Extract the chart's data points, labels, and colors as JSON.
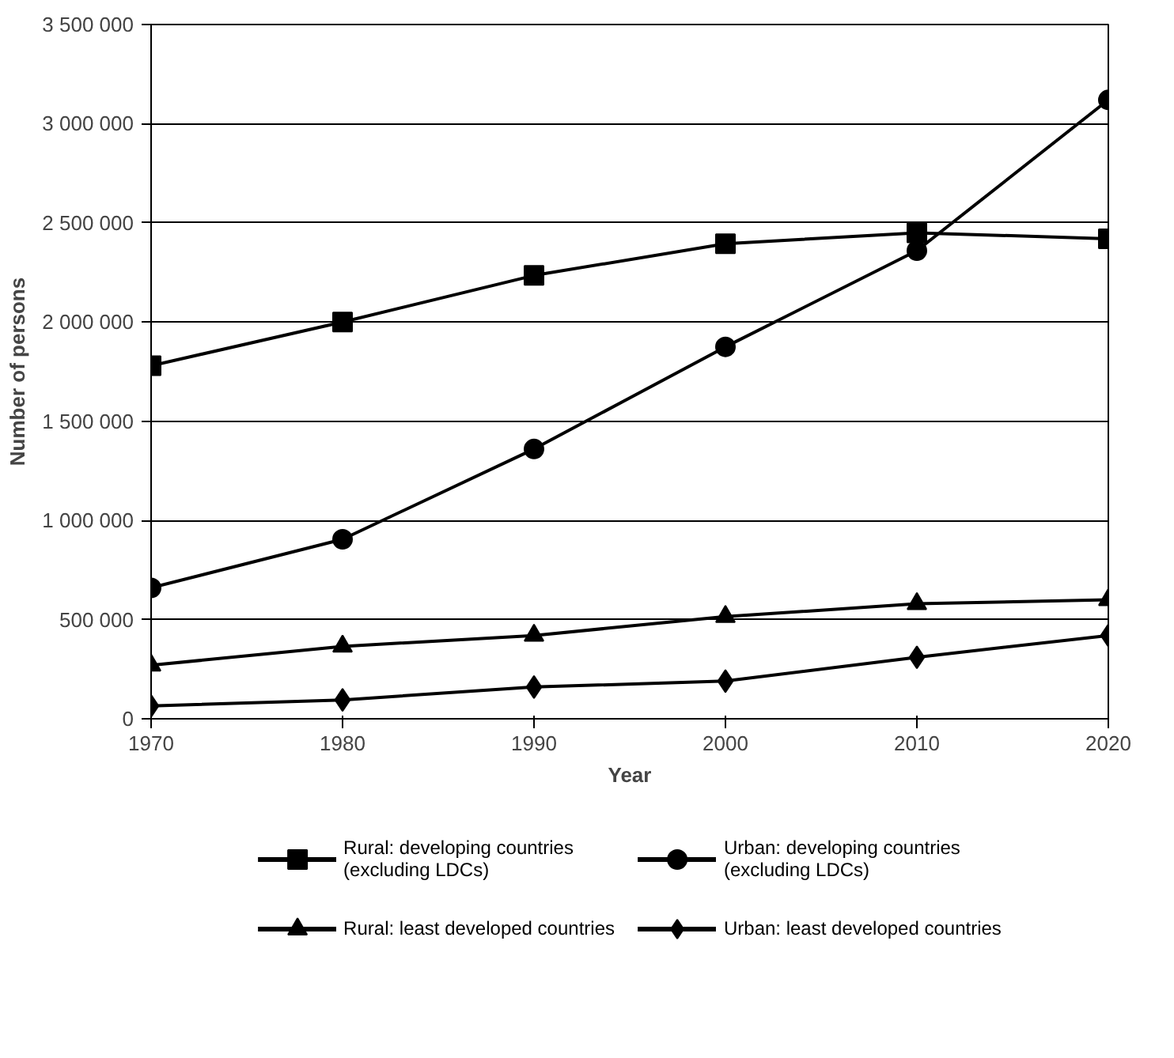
{
  "chart_data": {
    "type": "line",
    "xlabel": "Year",
    "ylabel": "Number of persons",
    "x": [
      1970,
      1980,
      1990,
      2000,
      2010,
      2020
    ],
    "xlim": [
      1970,
      2020
    ],
    "xticks": [
      1970,
      1980,
      1990,
      2000,
      2010,
      2020
    ],
    "ylim": [
      0,
      3500000
    ],
    "yticks": [
      0,
      {
        "value": 500000,
        "label": "500 000"
      },
      {
        "value": 1000000,
        "label": "1 000 000"
      },
      {
        "value": 1500000,
        "label": "1 500 000"
      },
      {
        "value": 2000000,
        "label": "2 000 000"
      },
      {
        "value": 2500000,
        "label": "2 500 000"
      },
      {
        "value": 3000000,
        "label": "3 000 000"
      },
      {
        "value": 3500000,
        "label": "3 500 000"
      }
    ],
    "grid": "y",
    "legend": "bottom",
    "line_style": "solid",
    "series": [
      {
        "name": "Rural: developing countries\n(excluding LDCs)",
        "color": "#000000",
        "marker": "square",
        "values": [
          1780000,
          2000000,
          2235000,
          2395000,
          2450000,
          2420000
        ]
      },
      {
        "name": "Rural: least developed countries",
        "color": "#000000",
        "marker": "triangle",
        "values": [
          270000,
          365000,
          420000,
          515000,
          580000,
          600000
        ]
      },
      {
        "name": "Urban: developing countries\n(excluding LDCs)",
        "color": "#000000",
        "marker": "circle",
        "values": [
          660000,
          905000,
          1360000,
          1875000,
          2360000,
          3120000
        ]
      },
      {
        "name": "Urban: least developed countries",
        "color": "#000000",
        "marker": "diamond",
        "values": [
          65000,
          95000,
          160000,
          190000,
          310000,
          420000
        ]
      }
    ]
  }
}
